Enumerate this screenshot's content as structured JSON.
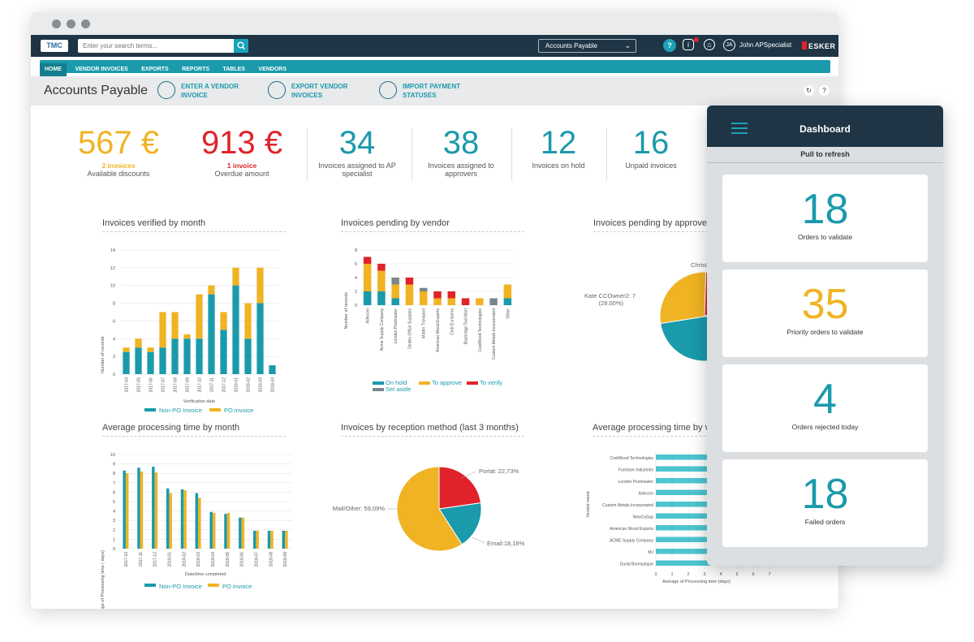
{
  "header": {
    "logo": "TMC",
    "search_placeholder": "Enter your search terms...",
    "selector": "Accounts Payable",
    "user_initials": "JA",
    "user_name": "John APSpecialist",
    "brand": "ESKER"
  },
  "nav": {
    "items": [
      "HOME",
      "VENDOR INVOICES",
      "EXPORTS",
      "REPORTS",
      "TABLES",
      "VENDORS"
    ]
  },
  "page": {
    "title": "Accounts Payable",
    "actions": [
      {
        "label": "ENTER A VENDOR INVOICE",
        "icon": "invoice-add-icon"
      },
      {
        "label": "EXPORT VENDOR INVOICES",
        "icon": "export-icon"
      },
      {
        "label": "IMPORT PAYMENT STATUSES",
        "icon": "card-import-icon"
      }
    ]
  },
  "kpis": [
    {
      "value": "567 €",
      "sub": "2 invoices",
      "label": "Available discounts",
      "color": "#f0b323"
    },
    {
      "value": "913 €",
      "sub": "1 invoice",
      "label": "Overdue amount",
      "color": "#e0232a"
    },
    {
      "value": "34",
      "label": "Invoices assigned to AP specialist",
      "color": "#1a9aab"
    },
    {
      "value": "38",
      "label": "Invoices assigned to approvers",
      "color": "#1a9aab"
    },
    {
      "value": "12",
      "label": "Invoices on hold",
      "color": "#1a9aab"
    },
    {
      "value": "16",
      "label": "Unpaid invoices",
      "color": "#1a9aab"
    }
  ],
  "colors": {
    "teal": "#1a9aab",
    "amber": "#f0b323",
    "red": "#e0232a",
    "gray": "#7a858c",
    "cyan": "#4dc5cf"
  },
  "chart_titles": {
    "verified": "Invoices verified by month",
    "pending_vendor": "Invoices pending by vendor",
    "pending_approver": "Invoices pending by approver",
    "avg_month": "Average processing time by month",
    "reception": "Invoices by reception method (last 3 months)",
    "avg_vendor": "Average processing time by v"
  },
  "chart_data": [
    {
      "type": "bar",
      "stacked": true,
      "title": "Invoices verified by month",
      "xlabel": "Verification date",
      "ylabel": "Number of records",
      "ylim": [
        0,
        14
      ],
      "yticks": [
        0,
        2,
        4,
        6,
        8,
        10,
        12,
        14
      ],
      "categories": [
        "2017-04",
        "2017-05",
        "2017-06",
        "2017-07",
        "2017-08",
        "2017-09",
        "2017-10",
        "2017-11",
        "2017-12",
        "2018-01",
        "2018-02",
        "2018-03",
        "2018-04"
      ],
      "series": [
        {
          "name": "Non-PO Invoice",
          "values": [
            2.5,
            3,
            2.5,
            3,
            4,
            4,
            4,
            9,
            5,
            10,
            4,
            8,
            1
          ]
        },
        {
          "name": "PO invoice",
          "values": [
            0.5,
            1,
            0.5,
            4,
            3,
            0.5,
            5,
            1,
            2,
            2,
            4,
            4,
            0
          ]
        }
      ]
    },
    {
      "type": "bar",
      "stacked": true,
      "title": "Invoices pending by vendor",
      "ylabel": "Number of records",
      "ylim": [
        0,
        8
      ],
      "yticks": [
        0,
        2,
        4,
        6,
        8
      ],
      "categories": [
        "Adecom",
        "Acme Supply Company",
        "London Postmaster",
        "Dedeo Office Supplies",
        "Matter Transport",
        "American Wood Exports",
        "Club Eurisama",
        "Boybridge Tool Mart",
        "CoolWood Technologies",
        "Custom Metals Incorporated",
        "Other"
      ],
      "series": [
        {
          "name": "On hold",
          "values": [
            2,
            2,
            1,
            0,
            0,
            0,
            0,
            0,
            0,
            0,
            1
          ]
        },
        {
          "name": "To approve",
          "values": [
            4,
            3,
            2,
            3,
            2,
            1,
            1,
            0,
            1,
            0,
            2
          ]
        },
        {
          "name": "To verify",
          "values": [
            1,
            1,
            0,
            1,
            0,
            1,
            1,
            1,
            0,
            0,
            0
          ]
        },
        {
          "name": "Set aside",
          "values": [
            0,
            0,
            1,
            0,
            0.5,
            0,
            0,
            0,
            0,
            1,
            0
          ]
        }
      ]
    },
    {
      "type": "pie",
      "title": "Invoices pending by approver",
      "labels": [
        "Kate CCOwner2: 7",
        "Christ"
      ],
      "annotations": [
        "Kate CCOwner2: 7",
        "(28.00%)",
        "Christ"
      ],
      "slices": [
        {
          "name": "Kate CCOwner2",
          "value": 28,
          "color": "#f0b323"
        },
        {
          "name": "Christ",
          "value": 16,
          "color": "#e0232a"
        },
        {
          "name": "",
          "value": 8,
          "color": "#7a858c"
        },
        {
          "name": "",
          "value": 48,
          "color": "#1a9aab"
        }
      ]
    },
    {
      "type": "bar",
      "title": "Average processing time by month",
      "xlabel": "Date/time completed",
      "ylabel": "Average of Processing time ( days)",
      "ylim": [
        0,
        10
      ],
      "yticks": [
        0,
        1,
        2,
        3,
        4,
        5,
        6,
        7,
        8,
        9,
        10
      ],
      "categories": [
        "2017-10",
        "2017-11",
        "2017-12",
        "2018-01",
        "2018-02",
        "2018-03",
        "2018-04",
        "2018-05",
        "2018-06",
        "2018-07",
        "2018-08",
        "2018-09"
      ],
      "series": [
        {
          "name": "Non-PO Invoice",
          "values": [
            8.3,
            8.6,
            8.7,
            6.4,
            6.3,
            5.9,
            3.9,
            3.7,
            3.3,
            1.9,
            1.9,
            1.9
          ]
        },
        {
          "name": "PO invoice",
          "values": [
            8,
            8.2,
            8.1,
            5.9,
            6.2,
            5.4,
            3.8,
            3.8,
            3.3,
            1.9,
            1.9,
            1.9
          ]
        }
      ]
    },
    {
      "type": "pie",
      "title": "Invoices by reception method (last 3 months)",
      "labels": [
        "Portal: 22,73%",
        "Email:18,18%",
        "Mail/Other: 59,09%"
      ],
      "slices": [
        {
          "name": "Portal",
          "value": 22.73,
          "color": "#e0232a"
        },
        {
          "name": "Email",
          "value": 18.18,
          "color": "#1a9aab"
        },
        {
          "name": "Mail/Other",
          "value": 59.09,
          "color": "#f0b323"
        }
      ]
    },
    {
      "type": "bar",
      "orientation": "horizontal",
      "title": "Average processing time by v",
      "xlabel": "Average of Processing time (days)",
      "ylabel": "Vendor name",
      "xlim": [
        0,
        7
      ],
      "xticks": [
        0,
        1,
        2,
        3,
        4,
        5,
        6,
        7
      ],
      "categories": [
        "CoolWood Technologies",
        "Furniture Industries",
        "London Postmaster",
        "Adecom",
        "Custom Metals Incorporated",
        "NewCaSup",
        "American Wood Exports",
        "ACME Supply Company",
        "MJ",
        "Durial Bureautique"
      ],
      "values": [
        6.5,
        6.5,
        6.5,
        6.5,
        6.5,
        6.5,
        6.5,
        6.5,
        6.5,
        6.5
      ]
    }
  ],
  "dashboard": {
    "title": "Dashboard",
    "pull": "Pull to refresh",
    "cards": [
      {
        "value": "18",
        "label": "Orders to validate",
        "color": "#1a9aab"
      },
      {
        "value": "35",
        "label": "Priority orders to validate",
        "color": "#f0b323"
      },
      {
        "value": "4",
        "label": "Orders rejected today",
        "color": "#1a9aab"
      },
      {
        "value": "18",
        "label": "Failed orders",
        "color": "#1a9aab"
      }
    ]
  }
}
